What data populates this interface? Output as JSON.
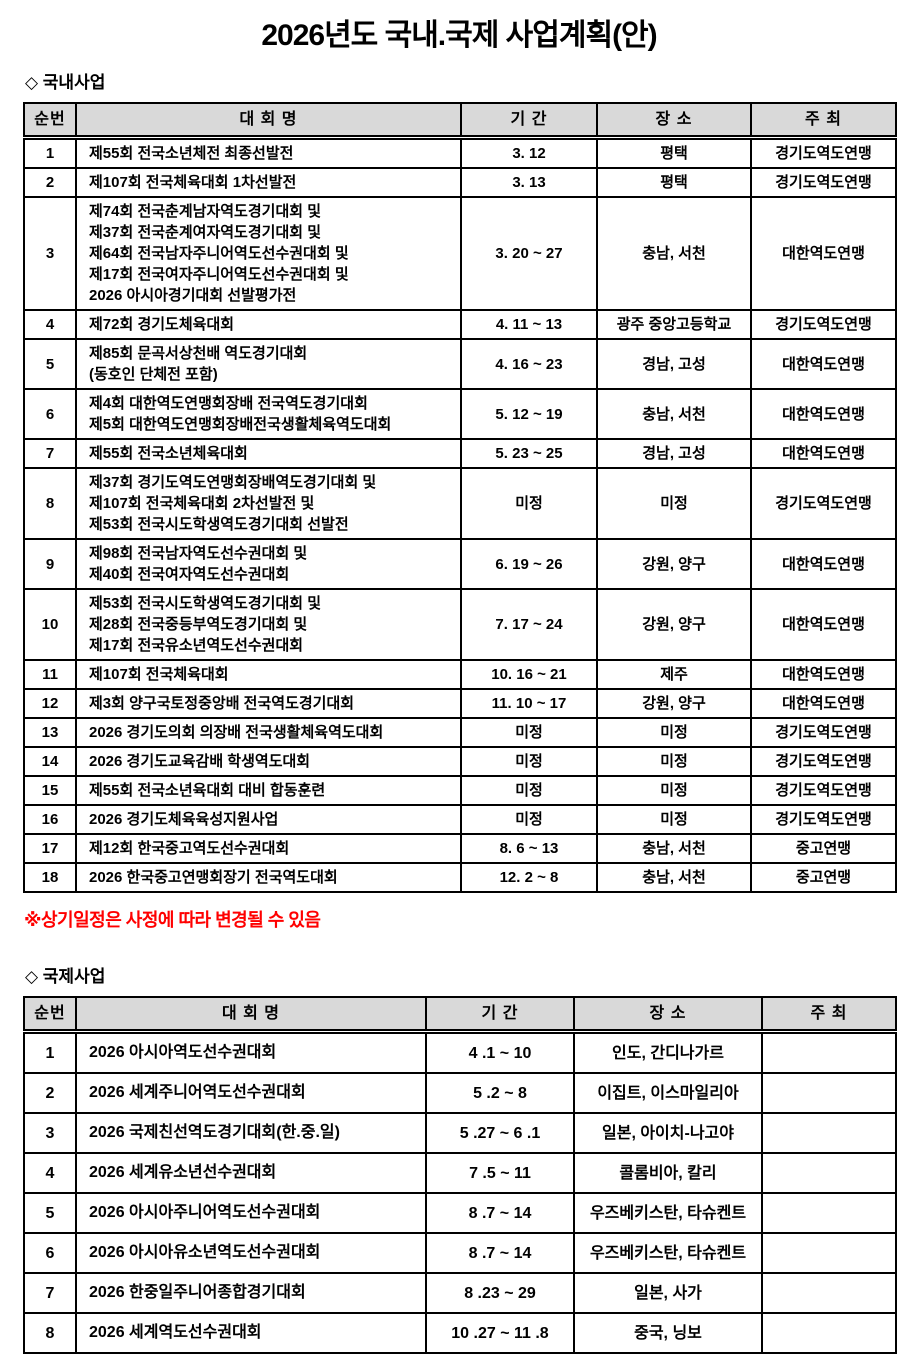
{
  "title": "2026년도 국내.국제 사업계획(안)",
  "note": "※상기일정은 사정에 따라 변경될 수 있음",
  "colors": {
    "header_bg": "#d9d9d9",
    "note_red": "#ff0000",
    "border": "#000000"
  },
  "domestic": {
    "section_title": "◇ 국내사업",
    "headers": [
      "순번",
      "대 회 명",
      "기 간",
      "장 소",
      "주 최"
    ],
    "rows": [
      {
        "no": "1",
        "event": [
          "제55회 전국소년체전 최종선발전"
        ],
        "period": "3. 12",
        "place": "평택",
        "host": "경기도역도연맹"
      },
      {
        "no": "2",
        "event": [
          "제107회 전국체육대회 1차선발전"
        ],
        "period": "3. 13",
        "place": "평택",
        "host": "경기도역도연맹"
      },
      {
        "no": "3",
        "event": [
          "제74회 전국춘계남자역도경기대회 및",
          "제37회 전국춘계여자역도경기대회 및",
          "제64회 전국남자주니어역도선수권대회 및",
          "제17회 전국여자주니어역도선수권대회 및",
          "2026 아시아경기대회 선발평가전"
        ],
        "period": "3. 20 ~ 27",
        "place": "충남, 서천",
        "host": "대한역도연맹"
      },
      {
        "no": "4",
        "event": [
          "제72회 경기도체육대회"
        ],
        "period": "4. 11 ~ 13",
        "place": "광주 중앙고등학교",
        "host": "경기도역도연맹"
      },
      {
        "no": "5",
        "event": [
          "제85회 문곡서상천배 역도경기대회",
          "(동호인 단체전 포함)"
        ],
        "period": "4. 16 ~ 23",
        "place": "경남, 고성",
        "host": "대한역도연맹"
      },
      {
        "no": "6",
        "event": [
          "제4회 대한역도연맹회장배 전국역도경기대회",
          "제5회 대한역도연맹회장배전국생활체육역도대회"
        ],
        "period": "5. 12 ~ 19",
        "place": "충남, 서천",
        "host": "대한역도연맹"
      },
      {
        "no": "7",
        "event": [
          "제55회 전국소년체육대회"
        ],
        "period": "5. 23 ~ 25",
        "place": "경남, 고성",
        "host": "대한역도연맹"
      },
      {
        "no": "8",
        "event": [
          "제37회 경기도역도연맹회장배역도경기대회 및",
          "제107회 전국체육대회 2차선발전 및",
          "제53회 전국시도학생역도경기대회 선발전"
        ],
        "period": "미정",
        "place": "미정",
        "host": "경기도역도연맹"
      },
      {
        "no": "9",
        "event": [
          "제98회 전국남자역도선수권대회 및",
          "제40회 전국여자역도선수권대회"
        ],
        "period": "6. 19 ~ 26",
        "place": "강원, 양구",
        "host": "대한역도연맹"
      },
      {
        "no": "10",
        "event": [
          "제53회 전국시도학생역도경기대회 및",
          "제28회 전국중등부역도경기대회 및",
          "제17회 전국유소년역도선수권대회"
        ],
        "period": "7. 17 ~ 24",
        "place": "강원, 양구",
        "host": "대한역도연맹"
      },
      {
        "no": "11",
        "event": [
          "제107회 전국체육대회"
        ],
        "period": "10. 16 ~ 21",
        "place": "제주",
        "host": "대한역도연맹"
      },
      {
        "no": "12",
        "event": [
          "제3회 양구국토정중앙배 전국역도경기대회"
        ],
        "period": "11. 10 ~ 17",
        "place": "강원, 양구",
        "host": "대한역도연맹"
      },
      {
        "no": "13",
        "event": [
          "2026 경기도의회 의장배 전국생활체육역도대회"
        ],
        "period": "미정",
        "place": "미정",
        "host": "경기도역도연맹"
      },
      {
        "no": "14",
        "event": [
          "2026 경기도교육감배 학생역도대회"
        ],
        "period": "미정",
        "place": "미정",
        "host": "경기도역도연맹"
      },
      {
        "no": "15",
        "event": [
          "제55회 전국소년육대회 대비 합동훈련"
        ],
        "period": "미정",
        "place": "미정",
        "host": "경기도역도연맹"
      },
      {
        "no": "16",
        "event": [
          "2026 경기도체육육성지원사업"
        ],
        "period": "미정",
        "place": "미정",
        "host": "경기도역도연맹"
      },
      {
        "no": "17",
        "event": [
          "제12회 한국중고역도선수권대회"
        ],
        "period": "8. 6 ~ 13",
        "place": "충남, 서천",
        "host": "중고연맹"
      },
      {
        "no": "18",
        "event": [
          "2026 한국중고연맹회장기 전국역도대회"
        ],
        "period": "12. 2 ~ 8",
        "place": "충남, 서천",
        "host": "중고연맹"
      }
    ]
  },
  "international": {
    "section_title": "◇ 국제사업",
    "headers": [
      "순번",
      "대 회 명",
      "기 간",
      "장 소",
      "주 최"
    ],
    "rows": [
      {
        "no": "1",
        "event": [
          "2026 아시아역도선수권대회"
        ],
        "period": "4 .1 ~ 10",
        "place": "인도, 간디나가르",
        "host": ""
      },
      {
        "no": "2",
        "event": [
          "2026 세계주니어역도선수권대회"
        ],
        "period": "5 .2 ~ 8",
        "place": "이집트, 이스마일리아",
        "host": ""
      },
      {
        "no": "3",
        "event": [
          "2026 국제친선역도경기대회(한.중.일)"
        ],
        "period": "5 .27 ~ 6 .1",
        "place": "일본, 아이치-나고야",
        "host": ""
      },
      {
        "no": "4",
        "event": [
          "2026 세계유소년선수권대회"
        ],
        "period": "7 .5 ~ 11",
        "place": "콜롬비아, 칼리",
        "host": ""
      },
      {
        "no": "5",
        "event": [
          "2026 아시아주니어역도선수권대회"
        ],
        "period": "8 .7 ~ 14",
        "place": "우즈베키스탄, 타슈켄트",
        "host": ""
      },
      {
        "no": "6",
        "event": [
          "2026 아시아유소년역도선수권대회"
        ],
        "period": "8 .7 ~ 14",
        "place": "우즈베키스탄, 타슈켄트",
        "host": ""
      },
      {
        "no": "7",
        "event": [
          "2026 한중일주니어종합경기대회"
        ],
        "period": "8 .23 ~ 29",
        "place": "일본, 사가",
        "host": ""
      },
      {
        "no": "8",
        "event": [
          "2026 세계역도선수권대회"
        ],
        "period": "10 .27 ~ 11 .8",
        "place": "중국, 닝보",
        "host": ""
      }
    ]
  }
}
